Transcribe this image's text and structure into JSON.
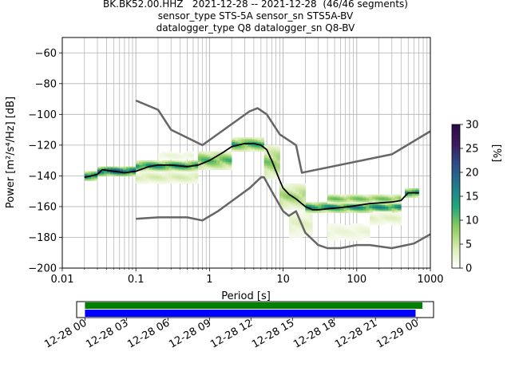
{
  "header": {
    "title_line1": "BK.BK52.00.HHZ   2021-12-28 -- 2021-12-28  (46/46 segments)",
    "title_line2": "sensor_type STS-5A sensor_sn STS5A-BV",
    "title_line3": "datalogger_type Q8 datalogger_sn Q8-BV"
  },
  "chart_data": [
    {
      "type": "heatmap",
      "subtype": "probabilistic-power-spectral-density",
      "xlabel": "Period [s]",
      "ylabel": "Power [m²/s⁴/Hz] [dB]",
      "xscale": "log",
      "xlim": [
        0.01,
        1000
      ],
      "ylim": [
        -200,
        -50
      ],
      "xtick_labels": [
        "0.01",
        "0.1",
        "1",
        "10",
        "100",
        "1000"
      ],
      "ytick_values": [
        -200,
        -180,
        -160,
        -140,
        -120,
        -100,
        -80,
        -60
      ],
      "ytick_labels": [
        "−200",
        "−180",
        "−160",
        "−140",
        "−120",
        "−100",
        "−80",
        "−60"
      ],
      "grid": true,
      "colorbar": {
        "label": "[%]",
        "range": [
          0,
          30
        ],
        "ticks": [
          "0",
          "5",
          "10",
          "15",
          "20",
          "25",
          "30"
        ],
        "colormap": [
          "#ffffff",
          "#d8ebb0",
          "#8ccb5e",
          "#1fa67a",
          "#227a8d",
          "#2e4f8a",
          "#3b1d5e",
          "#2d0a46"
        ]
      },
      "series": [
        {
          "role": "mean",
          "color": "#000000",
          "points": [
            [
              0.02,
              -141
            ],
            [
              0.025,
              -140
            ],
            [
              0.03,
              -139
            ],
            [
              0.035,
              -136
            ],
            [
              0.05,
              -137
            ],
            [
              0.07,
              -138
            ],
            [
              0.1,
              -137
            ],
            [
              0.15,
              -134
            ],
            [
              0.2,
              -133
            ],
            [
              0.3,
              -133
            ],
            [
              0.5,
              -134
            ],
            [
              0.7,
              -133
            ],
            [
              1,
              -130
            ],
            [
              1.5,
              -125
            ],
            [
              2,
              -121
            ],
            [
              3,
              -119
            ],
            [
              4,
              -119
            ],
            [
              5,
              -120
            ],
            [
              6,
              -123
            ],
            [
              7,
              -130
            ],
            [
              8,
              -137
            ],
            [
              9,
              -143
            ],
            [
              10,
              -148
            ],
            [
              12,
              -152
            ],
            [
              15,
              -155
            ],
            [
              20,
              -160
            ],
            [
              25,
              -162
            ],
            [
              30,
              -162
            ],
            [
              50,
              -161
            ],
            [
              80,
              -160
            ],
            [
              150,
              -158
            ],
            [
              300,
              -157
            ],
            [
              400,
              -156
            ],
            [
              500,
              -151
            ],
            [
              700,
              -151
            ]
          ]
        },
        {
          "role": "noise-model-high",
          "color": "#666666",
          "points": [
            [
              0.1,
              -91
            ],
            [
              0.2,
              -97
            ],
            [
              0.3,
              -110
            ],
            [
              0.8,
              -120
            ],
            [
              3.5,
              -98
            ],
            [
              4.5,
              -96
            ],
            [
              6,
              -100
            ],
            [
              9,
              -113
            ],
            [
              15,
              -120
            ],
            [
              18,
              -138
            ],
            [
              300,
              -126
            ],
            [
              1000,
              -111
            ]
          ]
        },
        {
          "role": "noise-model-low",
          "color": "#666666",
          "points": [
            [
              0.1,
              -168
            ],
            [
              0.2,
              -167
            ],
            [
              0.5,
              -167
            ],
            [
              0.8,
              -169
            ],
            [
              1.3,
              -163
            ],
            [
              3.5,
              -148
            ],
            [
              5,
              -141
            ],
            [
              5.5,
              -141
            ],
            [
              7,
              -150
            ],
            [
              10,
              -163
            ],
            [
              12,
              -166
            ],
            [
              15,
              -163
            ],
            [
              20,
              -177
            ],
            [
              30,
              -185
            ],
            [
              40,
              -187
            ],
            [
              60,
              -187
            ],
            [
              100,
              -185
            ],
            [
              150,
              -185
            ],
            [
              300,
              -187
            ],
            [
              600,
              -184
            ],
            [
              1000,
              -178
            ]
          ]
        }
      ],
      "density_bands": [
        {
          "x0": 0.02,
          "x1": 0.03,
          "y0": -143,
          "y1": -137,
          "level": 18
        },
        {
          "x0": 0.03,
          "x1": 0.1,
          "y0": -140,
          "y1": -134,
          "level": 20
        },
        {
          "x0": 0.1,
          "x1": 0.7,
          "y0": -137,
          "y1": -130,
          "level": 14
        },
        {
          "x0": 0.1,
          "x1": 0.7,
          "y0": -145,
          "y1": -137,
          "level": 4
        },
        {
          "x0": 0.2,
          "x1": 0.6,
          "y0": -130,
          "y1": -124,
          "level": 2
        },
        {
          "x0": 0.7,
          "x1": 2,
          "y0": -136,
          "y1": -124,
          "level": 10
        },
        {
          "x0": 2,
          "x1": 5.5,
          "y0": -124,
          "y1": -115,
          "level": 12
        },
        {
          "x0": 5.5,
          "x1": 9,
          "y0": -142,
          "y1": -120,
          "level": 8
        },
        {
          "x0": 9,
          "x1": 20,
          "y0": -162,
          "y1": -145,
          "level": 7
        },
        {
          "x0": 12,
          "x1": 25,
          "y0": -180,
          "y1": -162,
          "level": 3
        },
        {
          "x0": 20,
          "x1": 400,
          "y0": -164,
          "y1": -157,
          "level": 14
        },
        {
          "x0": 40,
          "x1": 400,
          "y0": -158,
          "y1": -152,
          "level": 9
        },
        {
          "x0": 40,
          "x1": 150,
          "y0": -183,
          "y1": -170,
          "level": 2
        },
        {
          "x0": 150,
          "x1": 400,
          "y0": -172,
          "y1": -163,
          "level": 3
        },
        {
          "x0": 450,
          "x1": 700,
          "y0": -154,
          "y1": -148,
          "level": 16
        }
      ]
    },
    {
      "type": "timeline",
      "role": "data-coverage",
      "xtick_labels": [
        "12-28 00",
        "12-28 03",
        "12-28 06",
        "12-28 09",
        "12-28 12",
        "12-28 15",
        "12-28 18",
        "12-28 21",
        "12-29 00"
      ],
      "xlim_hours": [
        -0.6,
        25.2
      ],
      "bars": [
        {
          "start_hour": 0,
          "end_hour": 24.4,
          "color": "#008000"
        },
        {
          "start_hour": 0,
          "end_hour": 23.9,
          "color": "#0000ff"
        }
      ]
    }
  ]
}
